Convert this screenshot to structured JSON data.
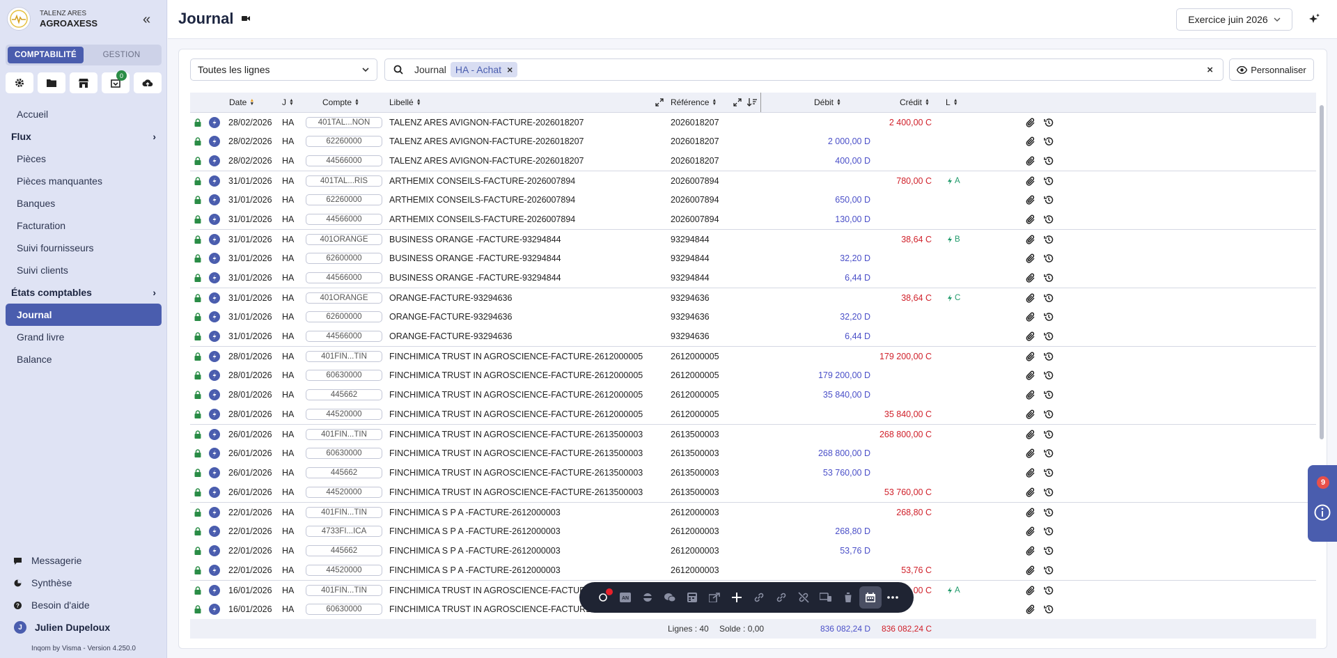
{
  "sidebar": {
    "company_group": "TALENZ ARES",
    "company_name": "AGROAXESS",
    "segments": [
      "COMPTABILITÉ",
      "GESTION"
    ],
    "notif_count": "0",
    "nav": {
      "accueil": "Accueil",
      "flux": "Flux",
      "pieces": "Pièces",
      "pieces_manquantes": "Pièces manquantes",
      "banques": "Banques",
      "facturation": "Facturation",
      "suivi_fournisseurs": "Suivi fournisseurs",
      "suivi_clients": "Suivi clients",
      "etats": "États comptables",
      "journal": "Journal",
      "grand_livre": "Grand livre",
      "balance": "Balance"
    },
    "bottom": {
      "messagerie": "Messagerie",
      "synthese": "Synthèse",
      "aide": "Besoin d'aide",
      "user": "Julien Dupeloux",
      "user_initial": "J"
    },
    "version": "Inqom by Visma - Version 4.250.0"
  },
  "header": {
    "title": "Journal",
    "exercise": "Exercice juin 2026"
  },
  "filters": {
    "line_filter": "Toutes les lignes",
    "search_label": "Journal",
    "chip": "HA - Achat",
    "personnaliser": "Personnaliser"
  },
  "table": {
    "headers": {
      "date": "Date",
      "j": "J",
      "compte": "Compte",
      "libelle": "Libellé",
      "reference": "Référence",
      "debit": "Débit",
      "credit": "Crédit",
      "l": "L"
    },
    "rows": [
      {
        "date": "28/02/2026",
        "j": "HA",
        "compte": "401TAL...NON",
        "libelle": "TALENZ ARES AVIGNON-FACTURE-2026018207",
        "ref": "2026018207",
        "debit": "",
        "credit": "2 400,00 C",
        "lettre": "",
        "first": true
      },
      {
        "date": "28/02/2026",
        "j": "HA",
        "compte": "62260000",
        "libelle": "TALENZ ARES AVIGNON-FACTURE-2026018207",
        "ref": "2026018207",
        "debit": "2 000,00 D",
        "credit": "",
        "lettre": ""
      },
      {
        "date": "28/02/2026",
        "j": "HA",
        "compte": "44566000",
        "libelle": "TALENZ ARES AVIGNON-FACTURE-2026018207",
        "ref": "2026018207",
        "debit": "400,00 D",
        "credit": "",
        "lettre": ""
      },
      {
        "date": "31/01/2026",
        "j": "HA",
        "compte": "401TAL...RIS",
        "libelle": "ARTHEMIX CONSEILS-FACTURE-2026007894",
        "ref": "2026007894",
        "debit": "",
        "credit": "780,00 C",
        "lettre": "A",
        "first": true
      },
      {
        "date": "31/01/2026",
        "j": "HA",
        "compte": "62260000",
        "libelle": "ARTHEMIX CONSEILS-FACTURE-2026007894",
        "ref": "2026007894",
        "debit": "650,00 D",
        "credit": "",
        "lettre": ""
      },
      {
        "date": "31/01/2026",
        "j": "HA",
        "compte": "44566000",
        "libelle": "ARTHEMIX CONSEILS-FACTURE-2026007894",
        "ref": "2026007894",
        "debit": "130,00 D",
        "credit": "",
        "lettre": ""
      },
      {
        "date": "31/01/2026",
        "j": "HA",
        "compte": "401ORANGE",
        "libelle": "BUSINESS ORANGE -FACTURE-93294844",
        "ref": "93294844",
        "debit": "",
        "credit": "38,64 C",
        "lettre": "B",
        "first": true
      },
      {
        "date": "31/01/2026",
        "j": "HA",
        "compte": "62600000",
        "libelle": "BUSINESS ORANGE -FACTURE-93294844",
        "ref": "93294844",
        "debit": "32,20 D",
        "credit": "",
        "lettre": ""
      },
      {
        "date": "31/01/2026",
        "j": "HA",
        "compte": "44566000",
        "libelle": "BUSINESS ORANGE -FACTURE-93294844",
        "ref": "93294844",
        "debit": "6,44 D",
        "credit": "",
        "lettre": ""
      },
      {
        "date": "31/01/2026",
        "j": "HA",
        "compte": "401ORANGE",
        "libelle": "ORANGE-FACTURE-93294636",
        "ref": "93294636",
        "debit": "",
        "credit": "38,64 C",
        "lettre": "C",
        "first": true
      },
      {
        "date": "31/01/2026",
        "j": "HA",
        "compte": "62600000",
        "libelle": "ORANGE-FACTURE-93294636",
        "ref": "93294636",
        "debit": "32,20 D",
        "credit": "",
        "lettre": ""
      },
      {
        "date": "31/01/2026",
        "j": "HA",
        "compte": "44566000",
        "libelle": "ORANGE-FACTURE-93294636",
        "ref": "93294636",
        "debit": "6,44 D",
        "credit": "",
        "lettre": ""
      },
      {
        "date": "28/01/2026",
        "j": "HA",
        "compte": "401FIN...TIN",
        "libelle": "FINCHIMICA TRUST IN AGROSCIENCE-FACTURE-2612000005",
        "ref": "2612000005",
        "debit": "",
        "credit": "179 200,00 C",
        "lettre": "",
        "first": true
      },
      {
        "date": "28/01/2026",
        "j": "HA",
        "compte": "60630000",
        "libelle": "FINCHIMICA TRUST IN AGROSCIENCE-FACTURE-2612000005",
        "ref": "2612000005",
        "debit": "179 200,00 D",
        "credit": "",
        "lettre": ""
      },
      {
        "date": "28/01/2026",
        "j": "HA",
        "compte": "445662",
        "libelle": "FINCHIMICA TRUST IN AGROSCIENCE-FACTURE-2612000005",
        "ref": "2612000005",
        "debit": "35 840,00 D",
        "credit": "",
        "lettre": ""
      },
      {
        "date": "28/01/2026",
        "j": "HA",
        "compte": "44520000",
        "libelle": "FINCHIMICA TRUST IN AGROSCIENCE-FACTURE-2612000005",
        "ref": "2612000005",
        "debit": "",
        "credit": "35 840,00 C",
        "lettre": ""
      },
      {
        "date": "26/01/2026",
        "j": "HA",
        "compte": "401FIN...TIN",
        "libelle": "FINCHIMICA TRUST IN AGROSCIENCE-FACTURE-2613500003",
        "ref": "2613500003",
        "debit": "",
        "credit": "268 800,00 C",
        "lettre": "",
        "first": true
      },
      {
        "date": "26/01/2026",
        "j": "HA",
        "compte": "60630000",
        "libelle": "FINCHIMICA TRUST IN AGROSCIENCE-FACTURE-2613500003",
        "ref": "2613500003",
        "debit": "268 800,00 D",
        "credit": "",
        "lettre": ""
      },
      {
        "date": "26/01/2026",
        "j": "HA",
        "compte": "445662",
        "libelle": "FINCHIMICA TRUST IN AGROSCIENCE-FACTURE-2613500003",
        "ref": "2613500003",
        "debit": "53 760,00 D",
        "credit": "",
        "lettre": ""
      },
      {
        "date": "26/01/2026",
        "j": "HA",
        "compte": "44520000",
        "libelle": "FINCHIMICA TRUST IN AGROSCIENCE-FACTURE-2613500003",
        "ref": "2613500003",
        "debit": "",
        "credit": "53 760,00 C",
        "lettre": ""
      },
      {
        "date": "22/01/2026",
        "j": "HA",
        "compte": "401FIN...TIN",
        "libelle": "FINCHIMICA S P A -FACTURE-2612000003",
        "ref": "2612000003",
        "debit": "",
        "credit": "268,80 C",
        "lettre": "",
        "first": true
      },
      {
        "date": "22/01/2026",
        "j": "HA",
        "compte": "4733FI...ICA",
        "libelle": "FINCHIMICA S P A -FACTURE-2612000003",
        "ref": "2612000003",
        "debit": "268,80 D",
        "credit": "",
        "lettre": ""
      },
      {
        "date": "22/01/2026",
        "j": "HA",
        "compte": "445662",
        "libelle": "FINCHIMICA S P A -FACTURE-2612000003",
        "ref": "2612000003",
        "debit": "53,76 D",
        "credit": "",
        "lettre": ""
      },
      {
        "date": "22/01/2026",
        "j": "HA",
        "compte": "44520000",
        "libelle": "FINCHIMICA S P A -FACTURE-2612000003",
        "ref": "2612000003",
        "debit": "",
        "credit": "53,76 C",
        "lettre": ""
      },
      {
        "date": "16/01/2026",
        "j": "HA",
        "compte": "401FIN...TIN",
        "libelle": "FINCHIMICA TRUST IN AGROSCIENCE-FACTURE-26",
        "ref": "",
        "debit": "",
        "credit": "0,00 C",
        "lettre": "A",
        "first": true
      },
      {
        "date": "16/01/2026",
        "j": "HA",
        "compte": "60630000",
        "libelle": "FINCHIMICA TRUST IN AGROSCIENCE-FACTURE-26",
        "ref": "",
        "debit": "",
        "credit": "",
        "lettre": ""
      }
    ],
    "footer": {
      "lignes": "Lignes : 40",
      "solde": "Solde : 0,00",
      "total_debit": "836 082,24 D",
      "total_credit": "836 082,24 C"
    }
  },
  "info_panel": {
    "badge": "9"
  },
  "colors": {
    "accent": "#4a5dae",
    "debit": "#4a4fc8",
    "credit": "#d0202a",
    "lettrage": "#1f9a6a",
    "lock": "#2a8c46"
  }
}
